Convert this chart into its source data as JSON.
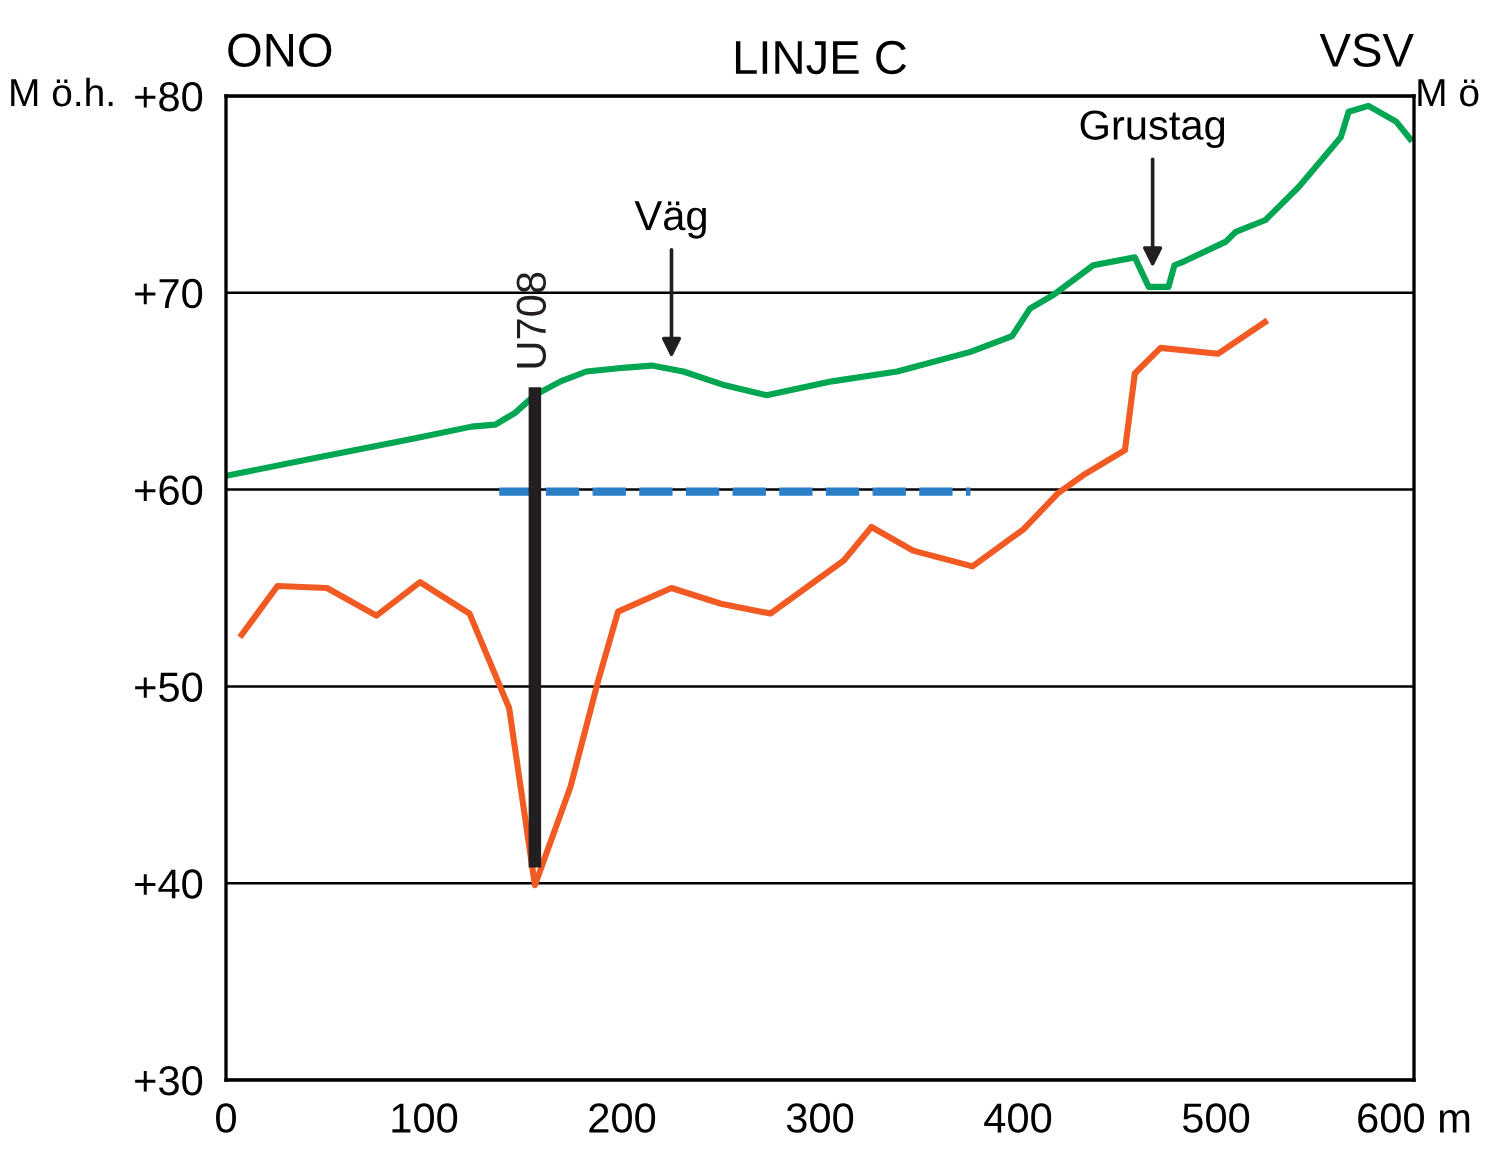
{
  "chart_data": {
    "type": "line",
    "title": "LINJE C",
    "ylabel": "M ö.h.",
    "y2label": "M ö",
    "annotations": [
      "ONO",
      "VSV",
      {
        "text": "Väg",
        "x": 225,
        "y": 66.4
      },
      {
        "text": "Grustag",
        "x": 468,
        "y": 71
      }
    ],
    "xlim": [
      0,
      600
    ],
    "xticks": [
      0,
      100,
      200,
      300,
      400,
      500,
      {
        "value": 600,
        "label": "600 m"
      }
    ],
    "ylim": [
      30,
      80
    ],
    "yticks": [
      {
        "value": 30,
        "label": "+30"
      },
      {
        "value": 40,
        "label": "+40"
      },
      {
        "value": 50,
        "label": "+50"
      },
      {
        "value": 60,
        "label": "+60"
      },
      {
        "value": 70,
        "label": "+70"
      },
      {
        "value": 80,
        "label": "+80"
      }
    ],
    "grid": "y",
    "legend": false,
    "series": [
      {
        "color": "#00a651",
        "line_style": "solid",
        "x": [
          0,
          45,
          95,
          124,
          136,
          146,
          156,
          169,
          182,
          202,
          215,
          231,
          252,
          273,
          306,
          339,
          376,
          397,
          406,
          418,
          438,
          459,
          466,
          476,
          479,
          484,
          505,
          510,
          525,
          542,
          563,
          567,
          577,
          591,
          599
        ],
        "values": [
          60.7,
          61.6,
          62.6,
          63.2,
          63.3,
          63.9,
          64.8,
          65.5,
          66.0,
          66.2,
          66.3,
          66.0,
          65.3,
          64.8,
          65.5,
          66.0,
          67.0,
          67.8,
          69.2,
          69.9,
          71.4,
          71.8,
          70.3,
          70.3,
          71.4,
          71.6,
          72.6,
          73.1,
          73.7,
          75.4,
          77.9,
          79.2,
          79.5,
          78.7,
          77.7
        ]
      },
      {
        "color": "#f15a22",
        "line_style": "solid",
        "x": [
          7,
          26,
          51,
          76,
          98,
          123,
          143,
          156,
          174,
          188,
          198,
          225,
          250,
          275,
          312,
          326,
          347,
          377,
          403,
          420,
          434,
          454,
          459,
          472,
          501,
          526
        ],
        "values": [
          52.5,
          55.1,
          55.0,
          53.6,
          55.3,
          53.7,
          48.9,
          39.9,
          44.9,
          50.3,
          53.8,
          55.0,
          54.2,
          53.7,
          56.4,
          58.1,
          56.9,
          56.1,
          58.0,
          59.8,
          60.8,
          62.0,
          65.9,
          67.2,
          66.9,
          68.6
        ]
      },
      {
        "color": "#2a7fc8",
        "line_style": "dashed",
        "x": [
          138,
          376
        ],
        "values": [
          59.9,
          59.9
        ]
      },
      {
        "name": "U708",
        "color": "#231f20",
        "line_style": "solid",
        "x": [
          156,
          156
        ],
        "values": [
          65.2,
          40.8
        ]
      }
    ]
  }
}
